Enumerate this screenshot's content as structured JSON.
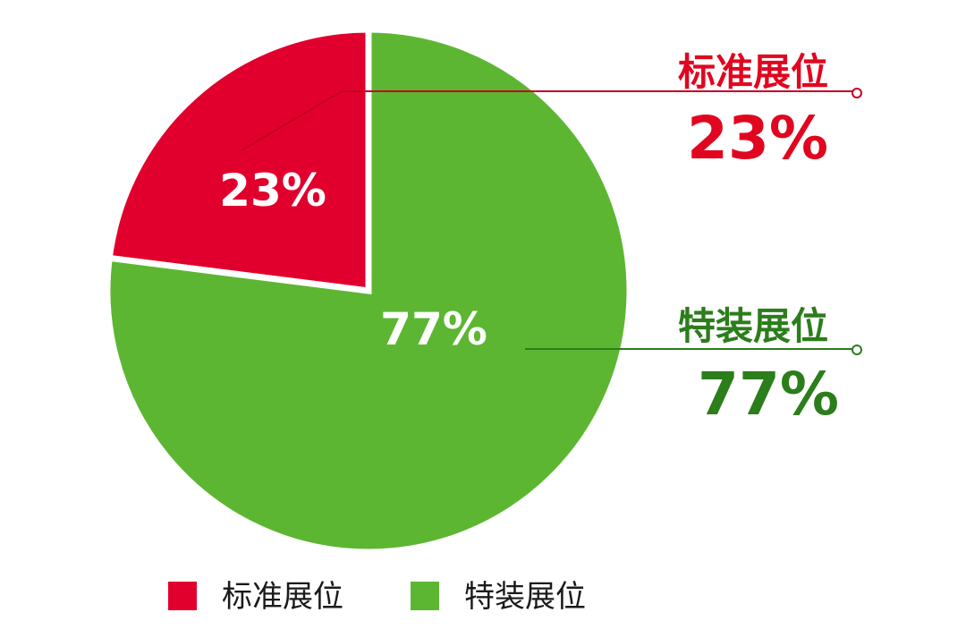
{
  "chart_data": {
    "type": "pie",
    "title": "",
    "categories": [
      "标准展位",
      "特装展位"
    ],
    "values": [
      23,
      77
    ],
    "value_labels": [
      "23%",
      "77%"
    ],
    "colors": [
      "#e1002d",
      "#5db632"
    ],
    "callout_colors": [
      "#e1061f",
      "#2c7d1b"
    ],
    "legend": {
      "position": "bottom",
      "entries": [
        "标准展位",
        "特装展位"
      ]
    }
  }
}
